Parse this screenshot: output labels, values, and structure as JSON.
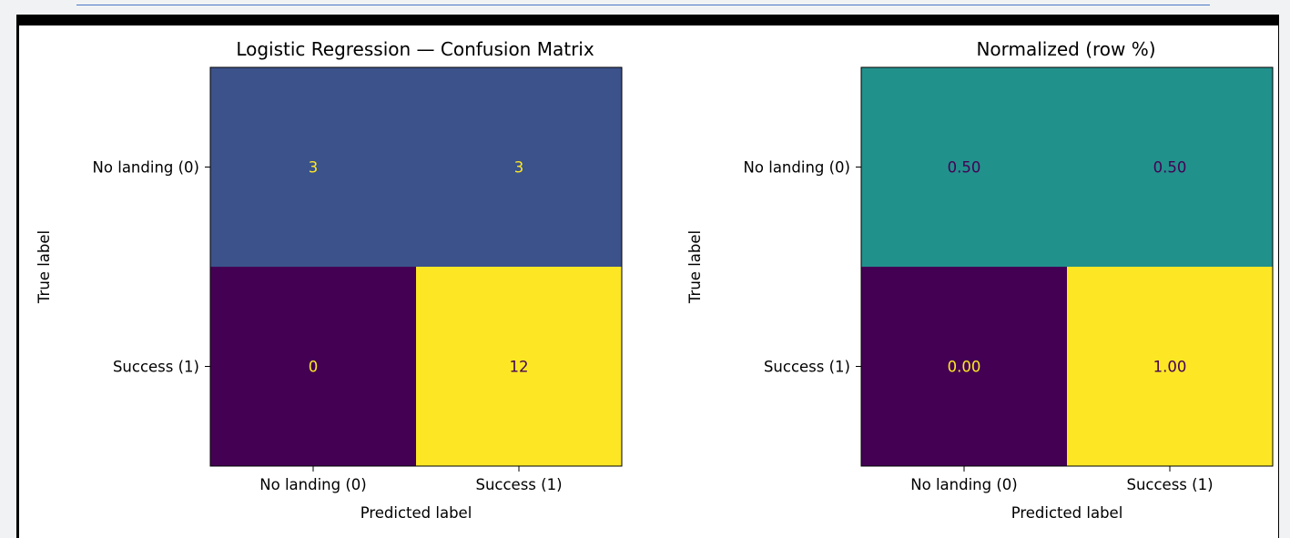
{
  "chart_data": [
    {
      "type": "heatmap",
      "title": "Logistic Regression — Confusion Matrix",
      "xlabel": "Predicted label",
      "ylabel": "True label",
      "x_categories": [
        "No landing (0)",
        "Success (1)"
      ],
      "y_categories": [
        "No landing (0)",
        "Success (1)"
      ],
      "values": [
        [
          3,
          3
        ],
        [
          0,
          12
        ]
      ],
      "value_labels": [
        [
          "3",
          "3"
        ],
        [
          "0",
          "12"
        ]
      ],
      "colormap": "viridis",
      "vmin": 0,
      "vmax": 12,
      "grid": false
    },
    {
      "type": "heatmap",
      "title": "Normalized (row %)",
      "xlabel": "Predicted label",
      "ylabel": "True label",
      "x_categories": [
        "No landing (0)",
        "Success (1)"
      ],
      "y_categories": [
        "No landing (0)",
        "Success (1)"
      ],
      "values": [
        [
          0.5,
          0.5
        ],
        [
          0.0,
          1.0
        ]
      ],
      "value_labels": [
        [
          "0.50",
          "0.50"
        ],
        [
          "0.00",
          "1.00"
        ]
      ],
      "colormap": "viridis",
      "vmin": 0,
      "vmax": 1,
      "grid": false
    }
  ],
  "colors": {
    "viridis": [
      "#440154",
      "#3b528b",
      "#21918c",
      "#5ec962",
      "#fde725"
    ],
    "text_on_dark": "#fde725",
    "text_on_light": "#440154",
    "axis": "#000000"
  }
}
